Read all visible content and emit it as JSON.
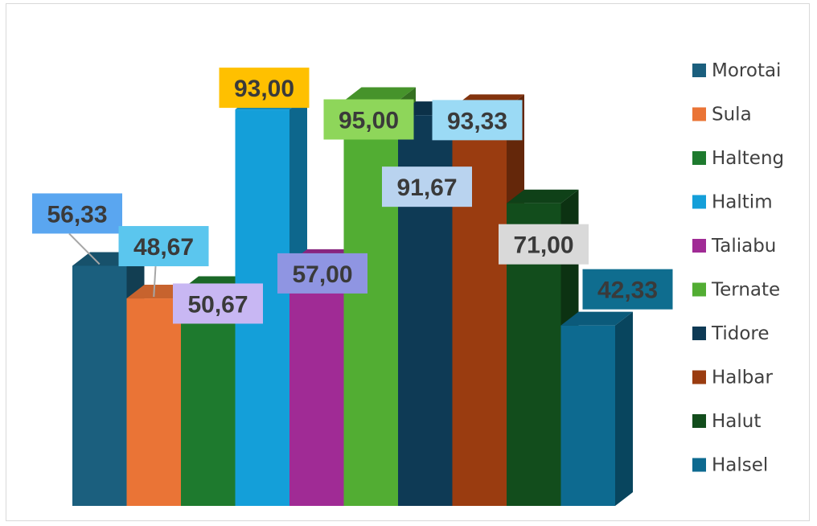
{
  "chart_data": {
    "type": "bar",
    "variant": "3d-column",
    "categories": [
      "Morotai",
      "Sula",
      "Halteng",
      "Haltim",
      "Taliabu",
      "Ternate",
      "Tidore",
      "Halbar",
      "Halut",
      "Halsel"
    ],
    "values": [
      56.33,
      48.67,
      50.67,
      93.0,
      57.0,
      95.0,
      91.67,
      93.33,
      71.0,
      42.33
    ],
    "data_labels": [
      "56,33",
      "48,67",
      "50,67",
      "93,00",
      "57,00",
      "95,00",
      "91,67",
      "93,33",
      "71,00",
      "42,33"
    ],
    "colors": [
      "#1b5f7e",
      "#ea7436",
      "#1e7a2e",
      "#149fd9",
      "#a02b95",
      "#52ad33",
      "#0e3a55",
      "#9a3c10",
      "#124d1c",
      "#0d6a90"
    ],
    "label_colors": [
      "#5aa6f0",
      "#5bc6ee",
      "#c8b7f3",
      "#ffc000",
      "#8f95e2",
      "#8ed65a",
      "#b9d3ef",
      "#9bdaf5",
      "#d9d9d9",
      "#0f6d8f"
    ],
    "legend": {
      "position": "right",
      "entries": [
        "Morotai",
        "Sula",
        "Halteng",
        "Haltim",
        "Taliabu",
        "Ternate",
        "Tidore",
        "Halbar",
        "Halut",
        "Halsel"
      ]
    },
    "title": "",
    "xlabel": "",
    "ylabel": "",
    "ylim": [
      0,
      100
    ],
    "grid": false,
    "axes_visible": false
  }
}
